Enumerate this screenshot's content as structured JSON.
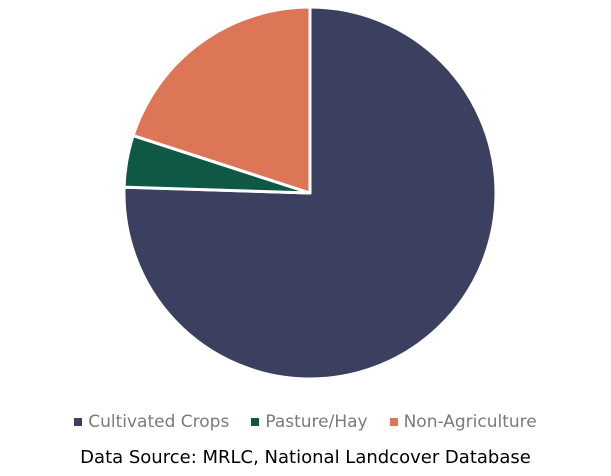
{
  "chart_data": {
    "type": "pie",
    "categories": [
      "Cultivated Crops",
      "Pasture/Hay",
      "Non-Agriculture"
    ],
    "values": [
      75.5,
      4.5,
      20.0
    ],
    "colors": [
      "#3c4060",
      "#0f5846",
      "#dd7557"
    ],
    "legend": {
      "position": "bottom"
    },
    "source": "Data Source: MRLC, National Landcover Database"
  }
}
